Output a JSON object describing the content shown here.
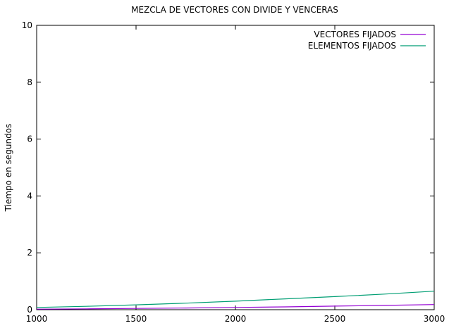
{
  "chart_data": {
    "type": "line",
    "title": "MEZCLA DE VECTORES CON DIVIDE Y VENCERAS",
    "xlabel": "",
    "ylabel": "Tiempo en segundos",
    "xlim": [
      1000,
      3000
    ],
    "ylim": [
      0,
      10
    ],
    "xticks": [
      1000,
      1500,
      2000,
      2500,
      3000
    ],
    "yticks": [
      0,
      2,
      4,
      6,
      8,
      10
    ],
    "xtick_labels": [
      "1000",
      "1500",
      "2000",
      "2500",
      "3000"
    ],
    "ytick_labels": [
      "0",
      "2",
      "4",
      "6",
      "8",
      "10"
    ],
    "grid": false,
    "legend_position": "top-right",
    "series": [
      {
        "name": "VECTORES FIJADOS",
        "color": "#9400d3",
        "x": [
          1000,
          1250,
          1500,
          1750,
          2000,
          2250,
          2500,
          2750,
          3000
        ],
        "y": [
          0.02,
          0.03,
          0.045,
          0.06,
          0.08,
          0.1,
          0.125,
          0.15,
          0.18
        ]
      },
      {
        "name": "ELEMENTOS FIJADOS",
        "color": "#009e73",
        "x": [
          1000,
          1250,
          1500,
          1750,
          2000,
          2250,
          2500,
          2750,
          3000
        ],
        "y": [
          0.08,
          0.12,
          0.17,
          0.23,
          0.3,
          0.38,
          0.46,
          0.55,
          0.65
        ]
      }
    ]
  }
}
